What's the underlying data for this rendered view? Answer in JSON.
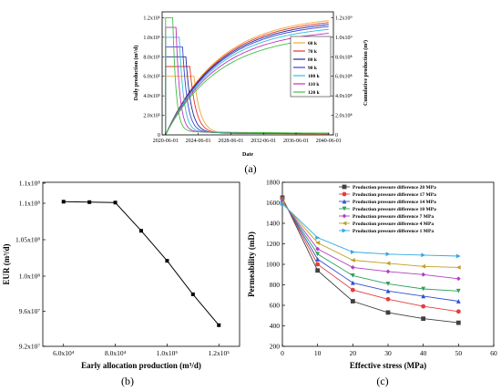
{
  "chart_data": [
    {
      "type": "line",
      "panel": "(a)",
      "xlabel": "Date",
      "ylabel": "Daily production (m³/d)",
      "y2label": "Cumulative production (m³)",
      "x_ticks": [
        "2020-06-01",
        "2024-06-01",
        "2028-06-01",
        "2032-06-01",
        "2036-06-01",
        "2040-06-01"
      ],
      "xlim": [
        2020.0,
        2041.0
      ],
      "y_ticks": [
        "0",
        "2.0x10⁵",
        "4.0x10⁵",
        "6.0x10⁵",
        "8.0x10⁵",
        "1.0x10⁶",
        "1.2x10⁶"
      ],
      "ylim": [
        0,
        1260000
      ],
      "y2_ticks": [
        "0",
        "2.0x10⁸",
        "4.0x10⁸",
        "6.0x10⁸",
        "8.0x10⁸",
        "1.0x10⁹",
        "1.2x10⁹"
      ],
      "y2lim": [
        0,
        1260000000
      ],
      "legend_position": "right",
      "series": [
        {
          "name": "60 k",
          "color": "#f0a830",
          "rate": 600000,
          "plateau_end": 2023.9,
          "cum_end": 1170000000
        },
        {
          "name": "70 k",
          "color": "#e8302a",
          "rate": 700000,
          "plateau_end": 2023.4,
          "cum_end": 1150000000
        },
        {
          "name": "80 k",
          "color": "#1a2a9a",
          "rate": 800000,
          "plateau_end": 2022.9,
          "cum_end": 1130000000
        },
        {
          "name": "90 k",
          "color": "#4040d8",
          "rate": 900000,
          "plateau_end": 2022.5,
          "cum_end": 1110000000
        },
        {
          "name": "100 k",
          "color": "#30c0d0",
          "rate": 1000000,
          "plateau_end": 2022.1,
          "cum_end": 1080000000
        },
        {
          "name": "110 k",
          "color": "#c030c0",
          "rate": 1100000,
          "plateau_end": 2021.7,
          "cum_end": 1040000000
        },
        {
          "name": "120 k",
          "color": "#40c040",
          "rate": 1200000,
          "plateau_end": 2021.3,
          "cum_end": 990000000
        }
      ]
    },
    {
      "type": "line",
      "panel": "(b)",
      "xlabel": "Early allocation production (m³/d)",
      "ylabel": "EUR (m³/d)",
      "x_ticks": [
        "6.0x10⁴",
        "8.0x10⁴",
        "1.0x10⁵",
        "1.2x10⁵"
      ],
      "x_tick_values": [
        60000,
        80000,
        100000,
        120000
      ],
      "xlim": [
        52000,
        128000
      ],
      "y_ticks": [
        "9.2x10⁷",
        "9.6x10⁷",
        "1.0x10⁸",
        "1.05x10⁸",
        "1.1x10⁸",
        "1.1x10⁸"
      ],
      "ylim": [
        92000000,
        110600000
      ],
      "series": [
        {
          "name": "EUR",
          "color": "#000000",
          "x": [
            60000,
            70000,
            80000,
            90000,
            100000,
            110000,
            120000
          ],
          "y": [
            108400000,
            108350000,
            108300000,
            105100000,
            101700000,
            97900000,
            94400000
          ]
        }
      ]
    },
    {
      "type": "line",
      "panel": "(c)",
      "xlabel": "Effective stress (MPa)",
      "ylabel": "Permeability (mD)",
      "x_ticks": [
        "0",
        "10",
        "20",
        "30",
        "40",
        "50",
        "60"
      ],
      "xlim": [
        0,
        60
      ],
      "y_ticks": [
        "200",
        "400",
        "600",
        "800",
        "1000",
        "1200",
        "1400",
        "1600",
        "1800"
      ],
      "ylim": [
        200,
        1800
      ],
      "legend_position": "top-right",
      "x": [
        0,
        10,
        20,
        30,
        40,
        50
      ],
      "series": [
        {
          "name": "Production pressure difference 20 MPa",
          "color": "#404040",
          "marker": "square",
          "values": [
            1650,
            940,
            640,
            530,
            470,
            430
          ]
        },
        {
          "name": "Production pressure difference 17 MPa",
          "color": "#e04040",
          "marker": "circle",
          "values": [
            1640,
            1000,
            750,
            660,
            590,
            540
          ]
        },
        {
          "name": "Production pressure difference 14 MPa",
          "color": "#3050d0",
          "marker": "triangle-up",
          "values": [
            1630,
            1050,
            820,
            740,
            690,
            640
          ]
        },
        {
          "name": "Production pressure difference 10 MPa",
          "color": "#30a060",
          "marker": "triangle-down",
          "values": [
            1620,
            1100,
            890,
            810,
            760,
            740
          ]
        },
        {
          "name": "Production pressure difference 7 MPa",
          "color": "#b040c0",
          "marker": "diamond",
          "values": [
            1610,
            1150,
            970,
            930,
            900,
            860
          ]
        },
        {
          "name": "Production pressure difference 4 MPa",
          "color": "#c0a020",
          "marker": "triangle-left",
          "values": [
            1600,
            1210,
            1040,
            1010,
            980,
            970
          ]
        },
        {
          "name": "Production pressure difference 1 MPa",
          "color": "#30a8e0",
          "marker": "triangle-right",
          "values": [
            1590,
            1260,
            1120,
            1100,
            1090,
            1080
          ]
        }
      ]
    }
  ]
}
